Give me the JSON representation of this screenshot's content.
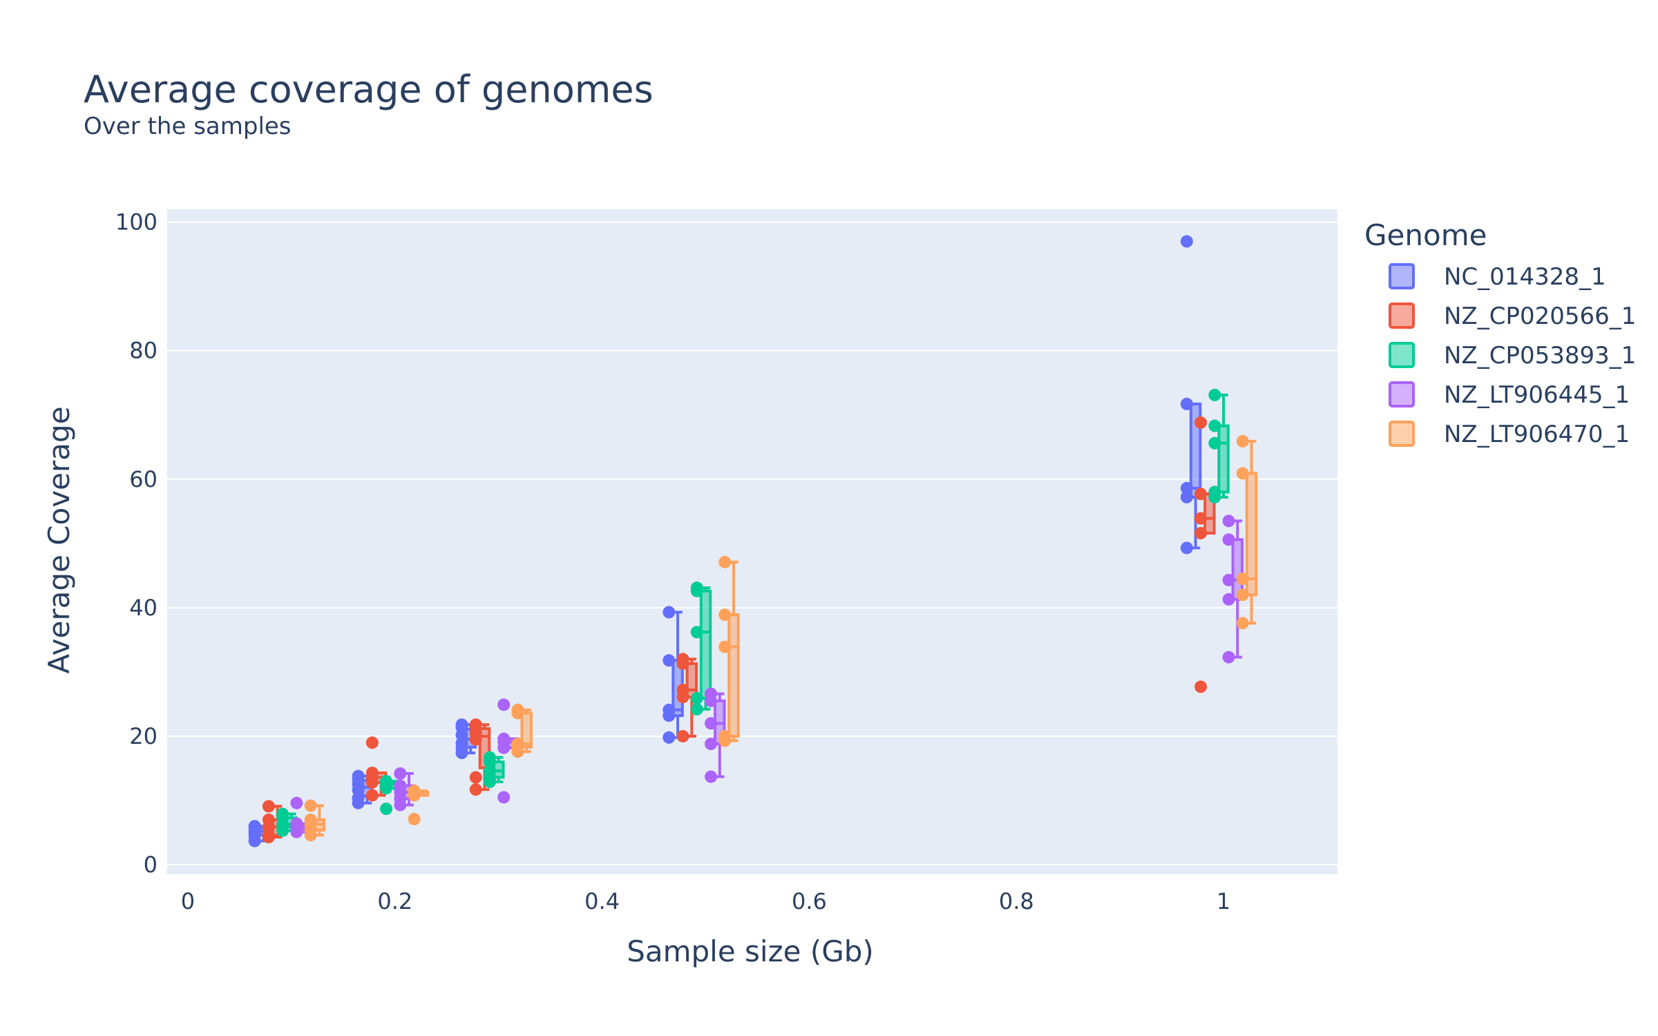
{
  "chart_data": {
    "type": "box",
    "title": "Average coverage of genomes",
    "subtitle": "Over the samples",
    "xlabel": "Sample size (Gb)",
    "ylabel": "Average Coverage",
    "xlim": [
      -0.02,
      1.11
    ],
    "ylim": [
      -1.5,
      102
    ],
    "x_ticks": [
      0,
      0.2,
      0.4,
      0.6,
      0.8,
      1
    ],
    "x_tick_labels": [
      "0",
      "0.2",
      "0.4",
      "0.6",
      "0.8",
      "1"
    ],
    "y_ticks": [
      0,
      20,
      40,
      60,
      80,
      100
    ],
    "y_tick_labels": [
      "0",
      "20",
      "40",
      "60",
      "80",
      "100"
    ],
    "legend_title": "Genome",
    "legend_position": "right",
    "groups": [
      0.1,
      0.2,
      0.3,
      0.5,
      1.0
    ],
    "series": [
      {
        "name": "NC_014328_1",
        "color": "#636efa",
        "boxes": [
          {
            "x": 0.1,
            "points": [
              3.7,
              4.5,
              5.0,
              5.4,
              5.8,
              6.0
            ]
          },
          {
            "x": 0.2,
            "points": [
              9.6,
              10.4,
              11.6,
              12.5,
              13.3,
              13.8
            ]
          },
          {
            "x": 0.3,
            "points": [
              17.4,
              18.1,
              18.9,
              20.2,
              21.4,
              21.8
            ]
          },
          {
            "x": 0.5,
            "points": [
              19.8,
              23.2,
              24.1,
              31.8,
              39.3
            ]
          },
          {
            "x": 1.0,
            "points": [
              49.3,
              57.2,
              58.6,
              71.7,
              97.0
            ]
          }
        ]
      },
      {
        "name": "NZ_CP020566_1",
        "color": "#EF553B",
        "boxes": [
          {
            "x": 0.1,
            "points": [
              4.3,
              4.6,
              5.9,
              7.0,
              9.1
            ]
          },
          {
            "x": 0.2,
            "points": [
              10.8,
              12.8,
              13.6,
              14.3,
              19.0
            ]
          },
          {
            "x": 0.3,
            "points": [
              11.7,
              13.6,
              19.5,
              20.5,
              21.4,
              21.8
            ]
          },
          {
            "x": 0.5,
            "points": [
              20.0,
              26.1,
              27.2,
              31.3,
              32.0
            ]
          },
          {
            "x": 1.0,
            "points": [
              27.7,
              51.6,
              53.9,
              57.7,
              68.8
            ]
          }
        ]
      },
      {
        "name": "NZ_CP053893_1",
        "color": "#00cc96",
        "boxes": [
          {
            "x": 0.1,
            "points": [
              5.3,
              5.9,
              6.3,
              7.3,
              7.9
            ]
          },
          {
            "x": 0.2,
            "points": [
              8.7,
              11.9,
              12.5,
              12.8,
              13.0
            ]
          },
          {
            "x": 0.3,
            "points": [
              12.9,
              13.6,
              14.6,
              16.0,
              16.7
            ]
          },
          {
            "x": 0.5,
            "points": [
              24.2,
              25.9,
              36.2,
              42.6,
              43.1
            ]
          },
          {
            "x": 1.0,
            "points": [
              57.2,
              58.0,
              65.6,
              68.3,
              73.1
            ]
          }
        ]
      },
      {
        "name": "NZ_LT906445_1",
        "color": "#ab63fa",
        "boxes": [
          {
            "x": 0.1,
            "points": [
              5.1,
              5.6,
              6.0,
              6.4,
              9.6
            ]
          },
          {
            "x": 0.2,
            "points": [
              9.3,
              10.3,
              11.3,
              12.3,
              14.2
            ]
          },
          {
            "x": 0.3,
            "points": [
              10.5,
              18.2,
              19.1,
              19.6,
              24.9
            ]
          },
          {
            "x": 0.5,
            "points": [
              13.7,
              18.8,
              22.0,
              25.5,
              26.6
            ]
          },
          {
            "x": 1.0,
            "points": [
              32.3,
              41.3,
              44.3,
              50.6,
              53.5
            ]
          }
        ]
      },
      {
        "name": "NZ_LT906470_1",
        "color": "#FFA15A",
        "boxes": [
          {
            "x": 0.1,
            "points": [
              4.6,
              5.4,
              6.3,
              7.0,
              9.2
            ]
          },
          {
            "x": 0.2,
            "points": [
              7.1,
              10.8,
              11.1,
              11.3,
              11.5
            ]
          },
          {
            "x": 0.3,
            "points": [
              17.6,
              18.3,
              18.8,
              23.6,
              24.1
            ]
          },
          {
            "x": 0.5,
            "points": [
              19.3,
              20.0,
              33.9,
              38.9,
              47.1
            ]
          },
          {
            "x": 1.0,
            "points": [
              37.6,
              42.0,
              44.5,
              60.9,
              65.9
            ]
          }
        ]
      }
    ]
  }
}
